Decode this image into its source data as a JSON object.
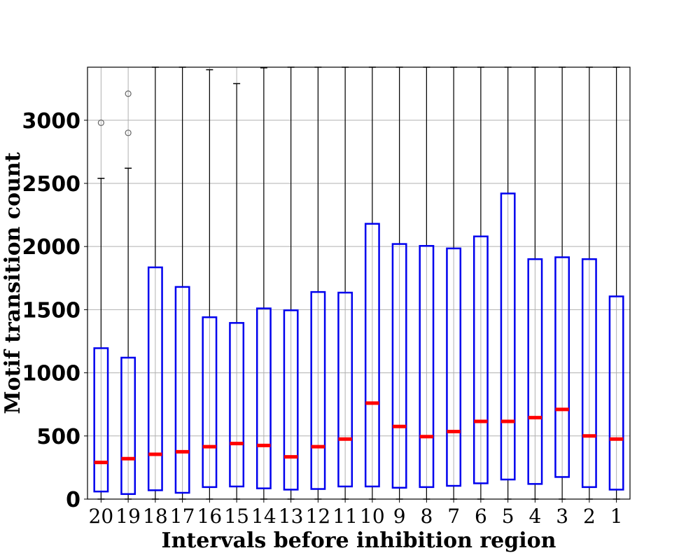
{
  "chart_data": {
    "type": "box",
    "title": "",
    "xlabel": "Intervals before inhibition region",
    "ylabel": "Motif transition count",
    "ylim": [
      0,
      3420
    ],
    "yticks": [
      0,
      500,
      1000,
      1500,
      2000,
      2500,
      3000
    ],
    "grid": true,
    "box_color": "#0000ee",
    "median_color": "#ff0000",
    "whisker_color": "#000000",
    "flier_color": "#666666",
    "categories": [
      "20",
      "19",
      "18",
      "17",
      "16",
      "15",
      "14",
      "13",
      "12",
      "11",
      "10",
      "9",
      "8",
      "7",
      "6",
      "5",
      "4",
      "3",
      "2",
      "1"
    ],
    "boxes": [
      {
        "label": "20",
        "q1": 60,
        "median": 290,
        "q3": 1195,
        "whisker_low": 0,
        "whisker_high": 2540,
        "outliers": [
          2980
        ]
      },
      {
        "label": "19",
        "q1": 40,
        "median": 320,
        "q3": 1120,
        "whisker_low": 0,
        "whisker_high": 2620,
        "outliers": [
          2900,
          3210
        ]
      },
      {
        "label": "18",
        "q1": 70,
        "median": 355,
        "q3": 1835,
        "whisker_low": 0,
        "whisker_high": 3420,
        "outliers": []
      },
      {
        "label": "17",
        "q1": 50,
        "median": 375,
        "q3": 1680,
        "whisker_low": 0,
        "whisker_high": 3420,
        "outliers": []
      },
      {
        "label": "16",
        "q1": 95,
        "median": 415,
        "q3": 1440,
        "whisker_low": 0,
        "whisker_high": 3400,
        "outliers": []
      },
      {
        "label": "15",
        "q1": 100,
        "median": 440,
        "q3": 1395,
        "whisker_low": 0,
        "whisker_high": 3290,
        "outliers": []
      },
      {
        "label": "14",
        "q1": 85,
        "median": 425,
        "q3": 1510,
        "whisker_low": 0,
        "whisker_high": 3415,
        "outliers": []
      },
      {
        "label": "13",
        "q1": 75,
        "median": 335,
        "q3": 1495,
        "whisker_low": 0,
        "whisker_high": 3420,
        "outliers": []
      },
      {
        "label": "12",
        "q1": 80,
        "median": 415,
        "q3": 1640,
        "whisker_low": 0,
        "whisker_high": 3420,
        "outliers": []
      },
      {
        "label": "11",
        "q1": 100,
        "median": 475,
        "q3": 1635,
        "whisker_low": 0,
        "whisker_high": 3420,
        "outliers": []
      },
      {
        "label": "10",
        "q1": 100,
        "median": 760,
        "q3": 2180,
        "whisker_low": 0,
        "whisker_high": 3420,
        "outliers": []
      },
      {
        "label": "9",
        "q1": 90,
        "median": 575,
        "q3": 2020,
        "whisker_low": 0,
        "whisker_high": 3420,
        "outliers": []
      },
      {
        "label": "8",
        "q1": 95,
        "median": 495,
        "q3": 2005,
        "whisker_low": 0,
        "whisker_high": 3420,
        "outliers": []
      },
      {
        "label": "7",
        "q1": 105,
        "median": 535,
        "q3": 1985,
        "whisker_low": 0,
        "whisker_high": 3420,
        "outliers": []
      },
      {
        "label": "6",
        "q1": 125,
        "median": 615,
        "q3": 2080,
        "whisker_low": 0,
        "whisker_high": 3420,
        "outliers": []
      },
      {
        "label": "5",
        "q1": 155,
        "median": 615,
        "q3": 2420,
        "whisker_low": 0,
        "whisker_high": 3420,
        "outliers": []
      },
      {
        "label": "4",
        "q1": 120,
        "median": 645,
        "q3": 1900,
        "whisker_low": 0,
        "whisker_high": 3420,
        "outliers": []
      },
      {
        "label": "3",
        "q1": 175,
        "median": 710,
        "q3": 1915,
        "whisker_low": 0,
        "whisker_high": 3420,
        "outliers": []
      },
      {
        "label": "2",
        "q1": 95,
        "median": 500,
        "q3": 1900,
        "whisker_low": 0,
        "whisker_high": 3420,
        "outliers": []
      },
      {
        "label": "1",
        "q1": 75,
        "median": 475,
        "q3": 1605,
        "whisker_low": 0,
        "whisker_high": 3420,
        "outliers": []
      }
    ]
  }
}
